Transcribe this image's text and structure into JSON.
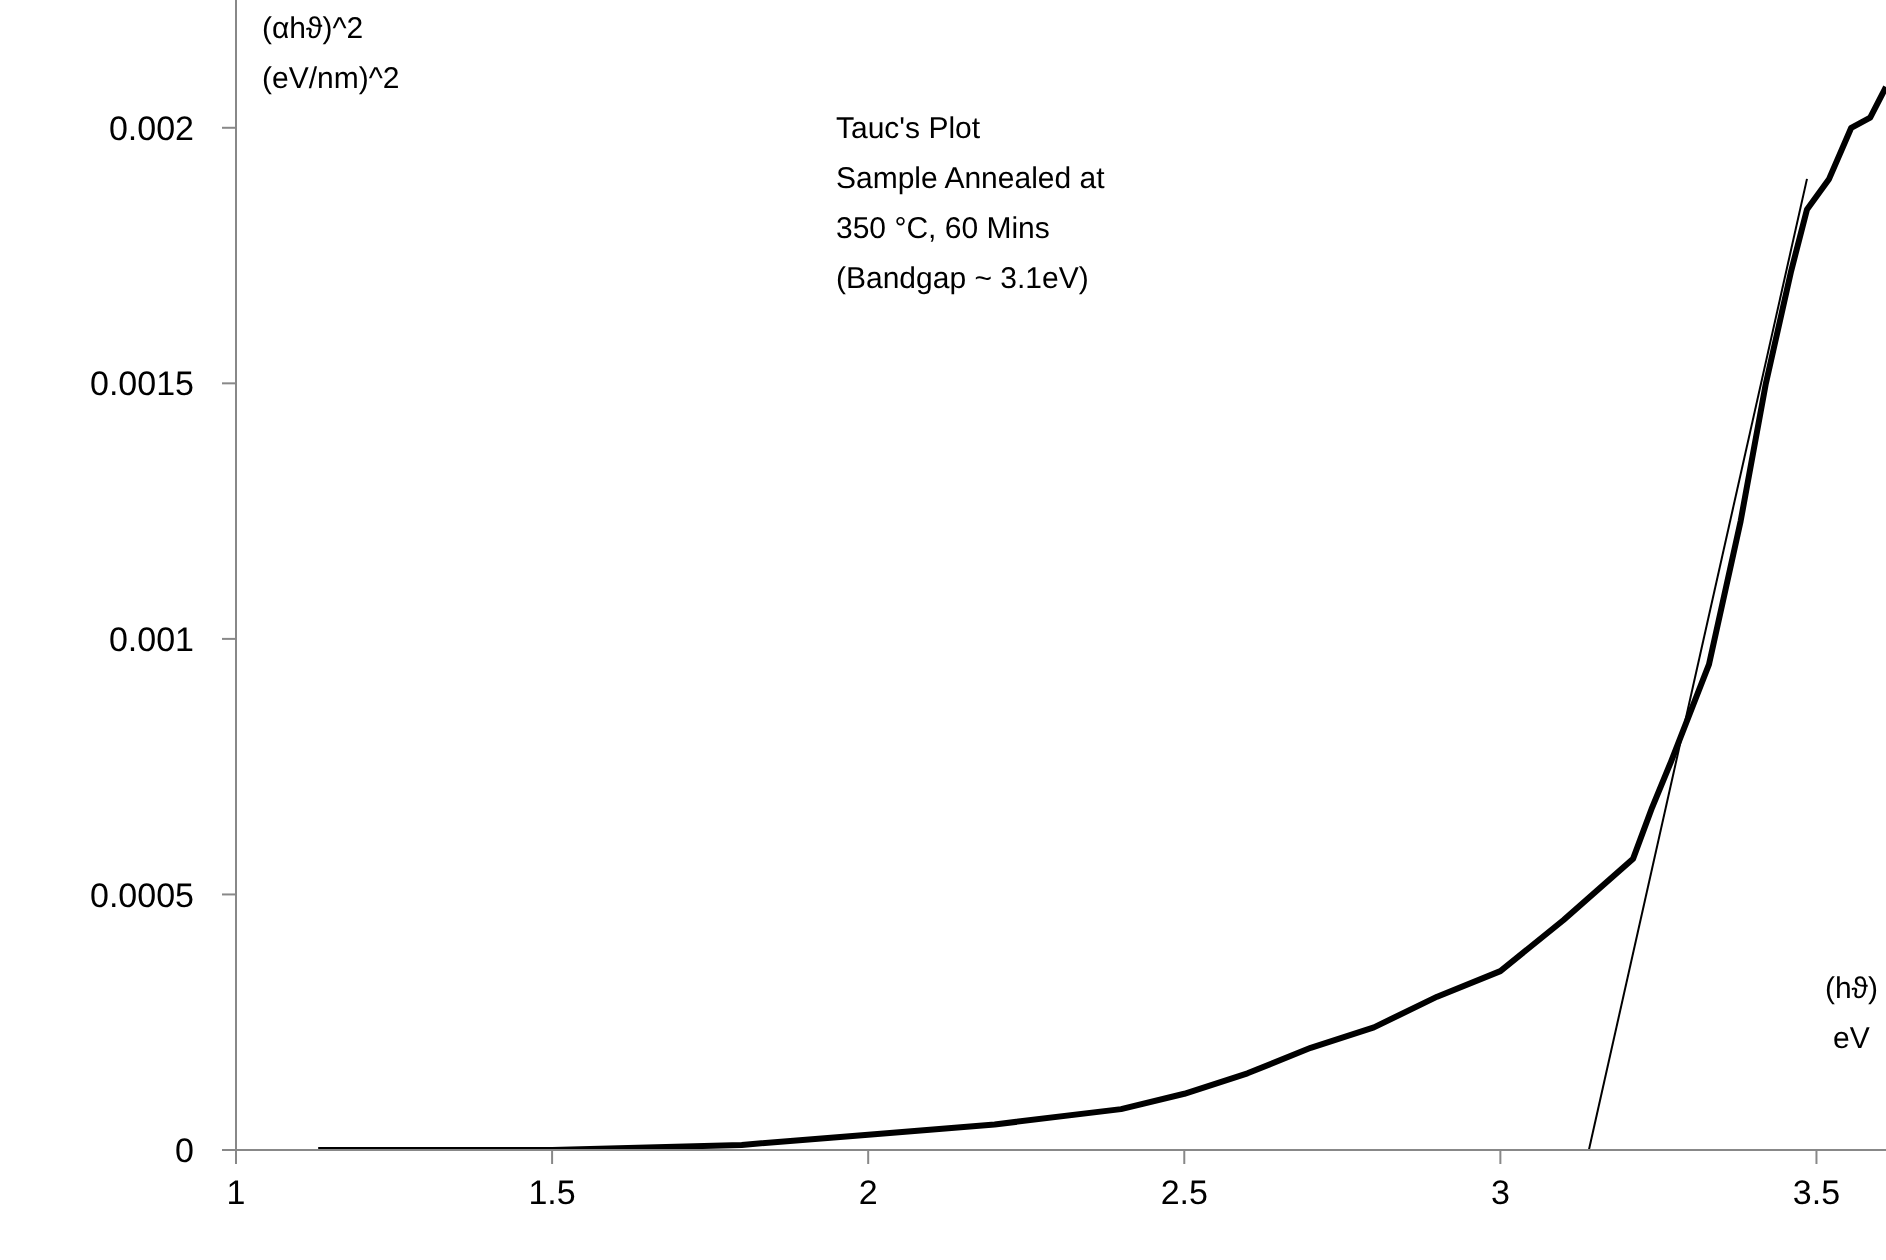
{
  "chart_data": {
    "type": "line",
    "title": "Tauc's Plot",
    "subtitle": "Sample Annealed at 350 °C, 60 Mins",
    "annotations": [
      "(Bandgap ~ 3.1eV)"
    ],
    "xlabel": "(hϑ)\neV",
    "ylabel": "(αhϑ)^2\n(eV/nm)^2",
    "xlim": [
      1,
      3.61
    ],
    "xticks": [
      1,
      1.5,
      2,
      2.5,
      3,
      3.5
    ],
    "ylim": [
      0,
      0.00225
    ],
    "yticks": [
      0,
      0.0005,
      0.001,
      0.0015,
      0.002
    ],
    "grid": false,
    "marker": "none",
    "line_style": "solid",
    "series": [
      {
        "color": "#000000",
        "x": [
          1.13,
          1.5,
          1.8,
          2.0,
          2.2,
          2.4,
          2.5,
          2.6,
          2.7,
          2.8,
          2.9,
          3.0,
          3.1,
          3.21,
          3.24,
          3.27,
          3.33,
          3.38,
          3.42,
          3.46,
          3.485,
          3.52,
          3.555,
          3.585,
          3.61
        ],
        "values": [
          0,
          0,
          1e-05,
          3e-05,
          5e-05,
          8e-05,
          0.00011,
          0.00015,
          0.0002,
          0.00024,
          0.0003,
          0.00035,
          0.00045,
          0.00057,
          0.00067,
          0.00076,
          0.00095,
          0.00123,
          0.0015,
          0.00172,
          0.00184,
          0.0019,
          0.002,
          0.00202,
          0.00208
        ]
      },
      {
        "type": "line",
        "color": "#000000",
        "x": [
          3.14,
          3.485
        ],
        "values": [
          0,
          0.0019
        ]
      }
    ]
  }
}
